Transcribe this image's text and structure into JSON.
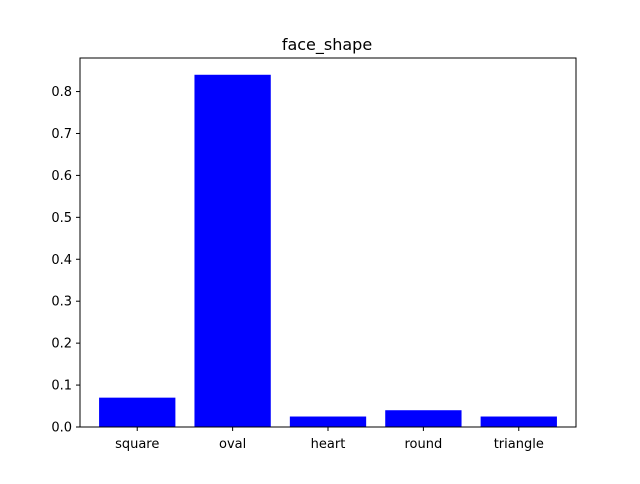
{
  "chart_data": {
    "type": "bar",
    "title": "face_shape",
    "xlabel": "",
    "ylabel": "",
    "categories": [
      "square",
      "oval",
      "heart",
      "round",
      "triangle"
    ],
    "values": [
      0.07,
      0.84,
      0.025,
      0.04,
      0.025
    ],
    "ylim": [
      0,
      0.88
    ],
    "yticks": [
      0.0,
      0.1,
      0.2,
      0.3,
      0.4,
      0.5,
      0.6,
      0.7,
      0.8
    ],
    "ytick_labels": [
      "0.0",
      "0.1",
      "0.2",
      "0.3",
      "0.4",
      "0.5",
      "0.6",
      "0.7",
      "0.8"
    ],
    "grid": false,
    "legend": "none",
    "bar_color": "#0000ff"
  }
}
